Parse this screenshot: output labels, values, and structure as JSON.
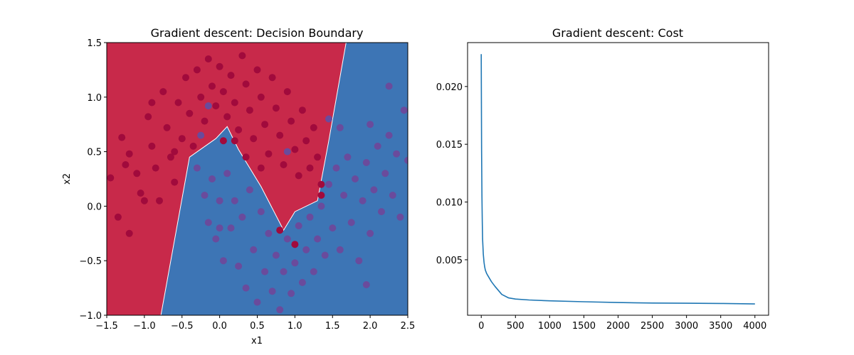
{
  "chart_data": [
    {
      "type": "scatter",
      "title": "Gradient descent: Decision Boundary",
      "xlabel": "x1",
      "ylabel": "x2",
      "xlim": [
        -1.5,
        2.5
      ],
      "ylim": [
        -1.0,
        1.5
      ],
      "xticks": [
        "−1.5",
        "−1.0",
        "−0.5",
        "0.0",
        "0.5",
        "1.0",
        "1.5",
        "2.0",
        "2.5"
      ],
      "yticks": [
        "−1.0",
        "−0.5",
        "0.0",
        "0.5",
        "1.0",
        "1.5"
      ],
      "region_colors": {
        "class_0": "#c8294a",
        "class_1": "#3d75b5"
      },
      "point_colors": {
        "class_0": "#a10a3c",
        "class_1": "#6a4b9c"
      },
      "decision_boundary": [
        [
          -0.78,
          -1.0
        ],
        [
          -0.4,
          0.45
        ],
        [
          -0.05,
          0.62
        ],
        [
          0.1,
          0.73
        ],
        [
          0.25,
          0.52
        ],
        [
          0.55,
          0.18
        ],
        [
          0.85,
          -0.22
        ],
        [
          1.0,
          -0.05
        ],
        [
          1.3,
          0.05
        ],
        [
          1.45,
          0.6
        ],
        [
          1.68,
          1.5
        ]
      ],
      "series": [
        {
          "points": [
            [
              -1.45,
              0.26
            ],
            [
              -1.3,
              0.63
            ],
            [
              -1.2,
              0.48
            ],
            [
              -1.1,
              0.3
            ],
            [
              -1.05,
              0.12
            ],
            [
              -0.95,
              0.82
            ],
            [
              -0.9,
              0.55
            ],
            [
              -0.85,
              0.35
            ],
            [
              -0.8,
              0.05
            ],
            [
              -0.75,
              1.05
            ],
            [
              -0.7,
              0.72
            ],
            [
              -0.65,
              0.45
            ],
            [
              -0.6,
              0.22
            ],
            [
              -0.55,
              0.95
            ],
            [
              -0.5,
              0.62
            ],
            [
              -0.45,
              1.18
            ],
            [
              -0.4,
              0.85
            ],
            [
              -0.35,
              0.55
            ],
            [
              -0.3,
              1.25
            ],
            [
              -0.25,
              1.0
            ],
            [
              -0.2,
              0.78
            ],
            [
              -0.15,
              1.35
            ],
            [
              -0.1,
              1.1
            ],
            [
              -0.05,
              0.92
            ],
            [
              0.0,
              1.28
            ],
            [
              0.05,
              1.05
            ],
            [
              0.1,
              0.82
            ],
            [
              0.15,
              1.2
            ],
            [
              0.2,
              0.95
            ],
            [
              0.25,
              0.7
            ],
            [
              0.3,
              1.38
            ],
            [
              0.35,
              1.12
            ],
            [
              0.4,
              0.88
            ],
            [
              0.45,
              0.62
            ],
            [
              0.5,
              1.25
            ],
            [
              0.55,
              1.0
            ],
            [
              0.6,
              0.75
            ],
            [
              0.65,
              0.48
            ],
            [
              0.7,
              1.18
            ],
            [
              0.75,
              0.9
            ],
            [
              0.8,
              0.65
            ],
            [
              0.85,
              0.38
            ],
            [
              0.9,
              1.05
            ],
            [
              0.95,
              0.78
            ],
            [
              1.0,
              0.52
            ],
            [
              1.05,
              0.28
            ],
            [
              1.1,
              0.88
            ],
            [
              1.15,
              0.6
            ],
            [
              1.2,
              0.35
            ],
            [
              1.25,
              0.72
            ],
            [
              1.3,
              0.45
            ],
            [
              1.35,
              0.2
            ],
            [
              -1.35,
              -0.1
            ],
            [
              -1.2,
              -0.25
            ],
            [
              -1.0,
              0.05
            ],
            [
              -1.25,
              0.38
            ],
            [
              -0.9,
              0.95
            ],
            [
              -0.6,
              0.5
            ],
            [
              0.2,
              0.6
            ],
            [
              0.8,
              -0.22
            ],
            [
              1.0,
              -0.35
            ],
            [
              1.35,
              0.1
            ],
            [
              0.55,
              0.35
            ],
            [
              0.35,
              0.45
            ],
            [
              0.05,
              0.6
            ]
          ]
        },
        {
          "points": [
            [
              -0.3,
              0.35
            ],
            [
              -0.2,
              0.1
            ],
            [
              -0.15,
              -0.15
            ],
            [
              -0.1,
              0.25
            ],
            [
              -0.05,
              -0.3
            ],
            [
              0.0,
              0.05
            ],
            [
              0.05,
              -0.5
            ],
            [
              0.1,
              0.3
            ],
            [
              0.15,
              -0.2
            ],
            [
              0.2,
              0.05
            ],
            [
              0.25,
              -0.55
            ],
            [
              0.3,
              -0.1
            ],
            [
              0.35,
              -0.75
            ],
            [
              0.4,
              0.15
            ],
            [
              0.45,
              -0.4
            ],
            [
              0.5,
              -0.88
            ],
            [
              0.55,
              -0.05
            ],
            [
              0.6,
              -0.6
            ],
            [
              0.65,
              -0.25
            ],
            [
              0.7,
              -0.78
            ],
            [
              0.75,
              -0.45
            ],
            [
              0.8,
              -0.95
            ],
            [
              0.85,
              -0.6
            ],
            [
              0.9,
              -0.3
            ],
            [
              0.95,
              -0.8
            ],
            [
              1.0,
              -0.52
            ],
            [
              1.05,
              -0.18
            ],
            [
              1.1,
              -0.7
            ],
            [
              1.15,
              -0.4
            ],
            [
              1.2,
              -0.1
            ],
            [
              1.25,
              -0.6
            ],
            [
              1.3,
              -0.3
            ],
            [
              1.35,
              0.0
            ],
            [
              1.4,
              -0.45
            ],
            [
              1.45,
              0.2
            ],
            [
              1.5,
              -0.2
            ],
            [
              1.55,
              0.35
            ],
            [
              1.6,
              -0.4
            ],
            [
              1.65,
              0.1
            ],
            [
              1.7,
              0.45
            ],
            [
              1.75,
              -0.15
            ],
            [
              1.8,
              0.25
            ],
            [
              1.85,
              -0.5
            ],
            [
              1.9,
              0.05
            ],
            [
              1.95,
              0.4
            ],
            [
              2.0,
              -0.25
            ],
            [
              2.05,
              0.15
            ],
            [
              2.1,
              0.55
            ],
            [
              2.15,
              -0.05
            ],
            [
              2.2,
              0.3
            ],
            [
              2.25,
              0.65
            ],
            [
              2.3,
              0.1
            ],
            [
              2.35,
              0.48
            ],
            [
              2.5,
              0.42
            ],
            [
              2.25,
              1.1
            ],
            [
              2.45,
              0.88
            ],
            [
              2.0,
              0.75
            ],
            [
              1.6,
              0.72
            ],
            [
              1.45,
              0.8
            ],
            [
              2.4,
              -0.1
            ],
            [
              -0.25,
              0.65
            ],
            [
              -0.15,
              0.92
            ],
            [
              0.9,
              0.5
            ],
            [
              0.0,
              -0.2
            ],
            [
              1.95,
              -0.72
            ]
          ]
        }
      ]
    },
    {
      "type": "line",
      "title": "Gradient descent: Cost",
      "xlim": [
        -200,
        4200
      ],
      "ylim": [
        0.0002,
        0.0238
      ],
      "xticks": [
        0,
        500,
        1000,
        1500,
        2000,
        2500,
        3000,
        3500,
        4000
      ],
      "yticks": [
        "0.005",
        "0.010",
        "0.015",
        "0.020"
      ],
      "line_color": "#1f77b4",
      "series": [
        {
          "x": [
            0,
            5,
            10,
            15,
            20,
            30,
            40,
            50,
            60,
            80,
            100,
            150,
            200,
            300,
            400,
            500,
            700,
            1000,
            1500,
            2000,
            2500,
            3000,
            3500,
            4000
          ],
          "y": [
            0.0228,
            0.0145,
            0.0105,
            0.0082,
            0.0068,
            0.0055,
            0.0048,
            0.0044,
            0.0041,
            0.0038,
            0.0036,
            0.0031,
            0.0027,
            0.002,
            0.0017,
            0.0016,
            0.00152,
            0.00145,
            0.00137,
            0.0013,
            0.00126,
            0.00124,
            0.00122,
            0.00118
          ]
        }
      ]
    }
  ]
}
